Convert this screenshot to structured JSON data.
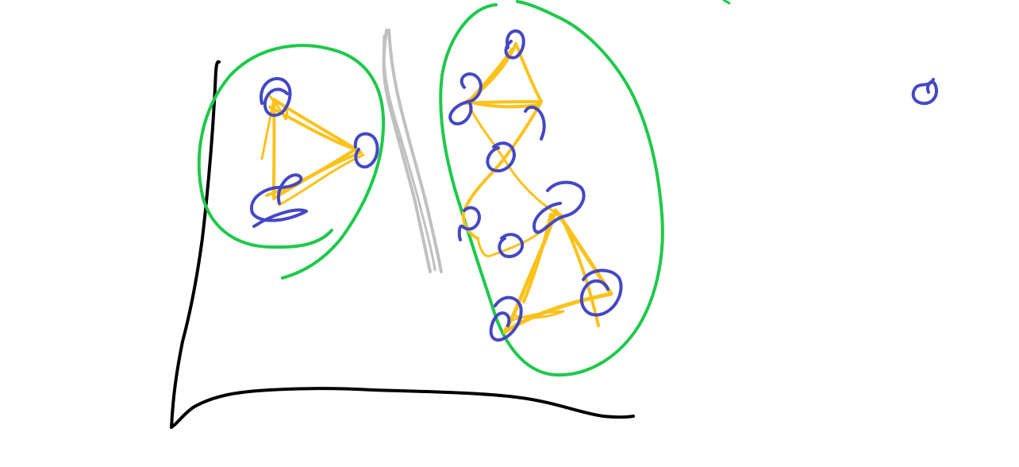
{
  "colors": {
    "axes": "#000000",
    "cluster_outline": "#1ec94a",
    "node": "#4448c4",
    "edge": "#fbc21b",
    "separator": "#c0c0c0"
  },
  "diagram": {
    "clusters": [
      {
        "id": "left-cluster",
        "node_count": 3
      },
      {
        "id": "right-cluster",
        "node_count": 8
      }
    ],
    "outlier_nodes": 1
  }
}
